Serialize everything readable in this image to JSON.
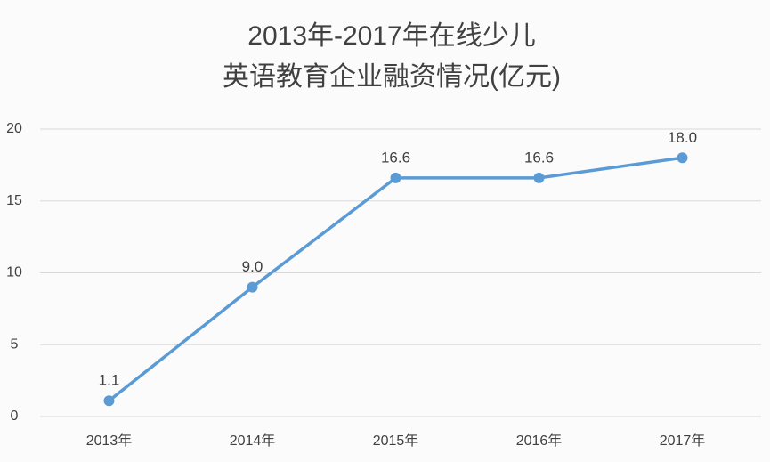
{
  "chart_data": {
    "type": "line",
    "title": [
      "2013年-2017年在线少儿",
      "英语教育企业融资情况(亿元)"
    ],
    "categories": [
      "2013年",
      "2014年",
      "2015年",
      "2016年",
      "2017年"
    ],
    "values": [
      1.1,
      9,
      16.6,
      16.6,
      18
    ],
    "value_labels": [
      "1.1",
      "9.0",
      "16.6",
      "16.6",
      "18.0"
    ],
    "color": "#5b9bd5",
    "ylim": [
      0,
      20
    ],
    "yticks": [
      0,
      5,
      10,
      15,
      20
    ],
    "grid": true
  }
}
